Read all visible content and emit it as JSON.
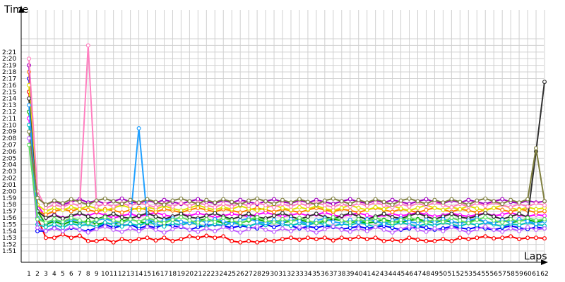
{
  "chart_data": {
    "type": "line",
    "ylabel": "Time",
    "xlabel": "Laps",
    "grid": true,
    "legend": "none",
    "xlim": [
      1,
      62
    ],
    "ylim_seconds": [
      110,
      142
    ],
    "y_ticks": [
      "1:51",
      "1:52",
      "1:53",
      "1:54",
      "1:55",
      "1:56",
      "1:57",
      "1:58",
      "1:59",
      "2:00",
      "2:01",
      "2:02",
      "2:03",
      "2:04",
      "2:05",
      "2:06",
      "2:07",
      "2:08",
      "2:09",
      "2:10",
      "2:11",
      "2:12",
      "2:13",
      "2:14",
      "2:15",
      "2:16",
      "2:17",
      "2:18",
      "2:19",
      "2:20",
      "2:21"
    ],
    "x_ticks": [
      "1",
      "2",
      "3",
      "4",
      "5",
      "6",
      "7",
      "8",
      "9",
      "10",
      "11",
      "12",
      "13",
      "14",
      "15",
      "16",
      "17",
      "18",
      "19",
      "20",
      "21",
      "22",
      "23",
      "24",
      "25",
      "26",
      "27",
      "28",
      "29",
      "30",
      "31",
      "32",
      "33",
      "34",
      "35",
      "36",
      "37",
      "38",
      "39",
      "40",
      "41",
      "42",
      "43",
      "44",
      "45",
      "46",
      "47",
      "48",
      "49",
      "50",
      "51",
      "52",
      "53",
      "54",
      "55",
      "56",
      "57",
      "58",
      "59",
      "60",
      "61",
      "62"
    ],
    "series": [
      {
        "color": "#ff0000",
        "values": [
          134,
          115,
          112,
          112,
          112.5,
          112,
          112.3,
          111.5,
          111.5,
          111.8,
          111.3,
          111.8,
          111.5,
          111.8,
          112,
          111.6,
          112,
          111.5,
          111.8,
          112.2,
          112,
          112.3,
          112,
          112.2,
          111.5,
          111.3,
          111.5,
          111.3,
          111.6,
          111.5,
          111.8,
          112,
          111.7,
          112,
          111.8,
          112,
          111.6,
          112,
          111.8,
          112.1,
          111.8,
          112,
          111.5,
          111.7,
          111.5,
          112,
          111.7,
          111.5,
          111.5,
          111.8,
          111.5,
          112,
          111.8,
          112,
          112.2,
          111.9,
          112,
          112.2,
          111.8,
          112,
          112,
          111.9
        ]
      },
      {
        "color": "#0000ff",
        "values": [
          136,
          113,
          113,
          113.5,
          113,
          113.5,
          113.2,
          113,
          113.5,
          114,
          113.5,
          113.8,
          114,
          113.4,
          113.8,
          113.5,
          114,
          113.8,
          113.6,
          113.2,
          113.6,
          113.8,
          114,
          113.8,
          113.5,
          113.8,
          113.6,
          113.4,
          114,
          113.6,
          114,
          113.8,
          113.4,
          113.7,
          113.5,
          113.8,
          113.6,
          113.3,
          113.5,
          113.7,
          113.4,
          113.6,
          113.8,
          113.5,
          113.2,
          113.4,
          113.7,
          113.5,
          113.2,
          113.4,
          113.7,
          113.5,
          113.3,
          113.6,
          113.4,
          113.2,
          113.5,
          113.8,
          113.5,
          113.3,
          113.6,
          113.4
        ]
      },
      {
        "color": "#00b000",
        "values": [
          131,
          116,
          114,
          114.5,
          114,
          114.5,
          114.2,
          114.6,
          114,
          114.3,
          114,
          114.5,
          114.8,
          114.4,
          114.2,
          114.6,
          114.3,
          114.7,
          114.4,
          114.2,
          114.6,
          114.8,
          114.5,
          114.3,
          114.5,
          114.2,
          114.6,
          114.8,
          114.4,
          114.6,
          114.3,
          114.5,
          114.7,
          114.4,
          114.2,
          114.5,
          114.8,
          114.6,
          114.3,
          114.5,
          114.2,
          114.4,
          114.7,
          114.5,
          114.3,
          114.6,
          114.8,
          114.5,
          114.3,
          114.6,
          114.4,
          114.2,
          114.5,
          114.7,
          114.4,
          114.2,
          114.6,
          114.3,
          114.5,
          114.7,
          114.4,
          114.6
        ]
      },
      {
        "color": "#ff00ff",
        "values": [
          130,
          117,
          115,
          115.5,
          115,
          115.2,
          115.6,
          115.3,
          115.8,
          115.4,
          115,
          115.3,
          115.6,
          115.2,
          115.5,
          115.8,
          115.4,
          115.2,
          115.6,
          115.3,
          115.7,
          115.4,
          115.1,
          115.3,
          115.6,
          115.4,
          115.2,
          115.5,
          115.8,
          115.5,
          115.2,
          115.4,
          115.7,
          115.3,
          115.5,
          115.8,
          115.4,
          115.2,
          115.5,
          115.7,
          115.4,
          115.1,
          115.4,
          115.6,
          115.3,
          115.5,
          115.8,
          115.5,
          115.2,
          115.4,
          115.7,
          115.4,
          115.2,
          115.5,
          115.7,
          115.3,
          115.5,
          115.8,
          115.4,
          115.2,
          115.5,
          115.3
        ]
      },
      {
        "color": "#00c0c0",
        "values": [
          129,
          114,
          113.6,
          114,
          113.5,
          114.2,
          113.8,
          114,
          113.6,
          114.3,
          114,
          113.7,
          114.1,
          113.8,
          114.4,
          114,
          113.7,
          114.2,
          113.9,
          114.3,
          114,
          113.6,
          114.1,
          113.8,
          114.3,
          114,
          113.7,
          114.2,
          113.9,
          114.4,
          114,
          113.8,
          114.2,
          113.9,
          114.3,
          114,
          113.7,
          114.1,
          113.9,
          114.3,
          114,
          113.6,
          114.2,
          113.9,
          114.3,
          114,
          113.7,
          114.1,
          113.8,
          114.3,
          114,
          113.7,
          114.2,
          113.9,
          114.3,
          114,
          113.7,
          114.1,
          113.9,
          114.3,
          114,
          113.8
        ]
      },
      {
        "color": "#ff8000",
        "values": [
          137,
          116,
          115.5,
          116,
          116.3,
          116,
          116.4,
          116.2,
          115.9,
          116.3,
          116.1,
          115.8,
          116.2,
          116.5,
          116.2,
          115.9,
          116.3,
          116.1,
          115.8,
          116.2,
          116.5,
          116.2,
          115.9,
          116.3,
          116.1,
          115.8,
          116.2,
          116.5,
          116.2,
          115.9,
          116.3,
          116.1,
          115.8,
          116.2,
          116.5,
          116.2,
          115.9,
          116.3,
          116.1,
          115.8,
          116.2,
          116.5,
          116.2,
          115.9,
          116.3,
          116.1,
          115.8,
          116.2,
          116.5,
          116.2,
          115.9,
          116.3,
          116.1,
          115.8,
          116.2,
          116.5,
          116.2,
          115.9,
          116.3,
          116.1,
          115.8,
          116
        ]
      },
      {
        "color": "#a000c0",
        "values": [
          138,
          118,
          117,
          117.5,
          117,
          117.4,
          117.8,
          117.3,
          117.6,
          117.1,
          117.5,
          117.9,
          117.4,
          117.2,
          117.6,
          117.3,
          117.7,
          117.4,
          117.1,
          117.5,
          117.8,
          117.4,
          117.2,
          117.6,
          117.3,
          117.7,
          117.4,
          117.1,
          117.5,
          117.8,
          117.4,
          117.2,
          117.6,
          117.3,
          117.7,
          117.4,
          117.1,
          117.5,
          117.8,
          117.4,
          117.2,
          117.6,
          117.3,
          117.7,
          117.4,
          117.1,
          117.5,
          117.8,
          117.4,
          117.2,
          117.6,
          117.3,
          117.7,
          117.4,
          117.1,
          117.5,
          117.8,
          117.4,
          117.2,
          117.6,
          117.3,
          117.5
        ]
      },
      {
        "color": "#e0e000",
        "values": [
          135,
          117,
          116,
          116.5,
          116.2,
          116.6,
          116.3,
          116.8,
          116.4,
          116.1,
          116.5,
          116.9,
          116.5,
          116.2,
          116.6,
          116.3,
          116.8,
          116.4,
          116.1,
          116.5,
          116.9,
          116.5,
          116.2,
          116.6,
          116.3,
          116.8,
          116.4,
          116.1,
          116.5,
          116.9,
          116.5,
          116.2,
          116.6,
          116.3,
          116.8,
          116.4,
          116.1,
          116.5,
          116.9,
          116.5,
          116.2,
          116.6,
          116.3,
          116.8,
          116.4,
          116.1,
          116.5,
          116.9,
          116.5,
          116.2,
          116.6,
          116.3,
          116.8,
          116.4,
          116.1,
          116.5,
          116.9,
          116.5,
          116.2,
          116.6,
          116.3,
          116.5
        ]
      },
      {
        "color": "#303030",
        "values": [
          133,
          116,
          115,
          115.4,
          114.9,
          115.3,
          115.7,
          115.2,
          114.8,
          115.2,
          115.6,
          115.1,
          114.9,
          115.3,
          115.7,
          115.2,
          114.8,
          115.2,
          115.6,
          115.1,
          114.9,
          115.3,
          115.7,
          115.2,
          114.8,
          115.2,
          115.6,
          115.1,
          114.9,
          115.3,
          115.7,
          115.2,
          114.8,
          115.2,
          115.6,
          115.1,
          114.9,
          115.3,
          115.7,
          115.2,
          114.8,
          115.2,
          115.6,
          115.1,
          114.9,
          115.3,
          115.7,
          115.2,
          114.8,
          115.2,
          115.6,
          115.1,
          114.9,
          115.3,
          115.7,
          115.2,
          114.8,
          115.2,
          115.6,
          115.1,
          125,
          135.5
        ]
      },
      {
        "color": "#20a0ff",
        "values": [
          132,
          115,
          114.2,
          114.7,
          114.3,
          114.8,
          114.5,
          114.1,
          114.6,
          114.9,
          114.4,
          114.2,
          114.7,
          128.5,
          114.8,
          114.3,
          114.6,
          114.9,
          114.4,
          114.2,
          114.7,
          114.3,
          114.8,
          114.5,
          114.1,
          114.6,
          114.9,
          114.4,
          114.2,
          114.7,
          114.3,
          114.8,
          114.5,
          114.1,
          114.6,
          114.9,
          114.4,
          114.2,
          114.7,
          114.3,
          114.8,
          114.5,
          114.1,
          114.6,
          114.9,
          114.4,
          114.2,
          114.7,
          114.3,
          114.8,
          114.5,
          114.1,
          114.6,
          114.9,
          114.4,
          114.2,
          114.7,
          114.3,
          114.8,
          114.5,
          114.1,
          114.5
        ]
      },
      {
        "color": "#ff80c0",
        "values": [
          139,
          119,
          116.5,
          117,
          116.6,
          117.2,
          116.8,
          141,
          116.7,
          117.1,
          116.7,
          117.2,
          116.8,
          117.3,
          116.9,
          116.6,
          117.1,
          116.7,
          117.2,
          116.8,
          117.3,
          116.9,
          116.6,
          117.1,
          116.7,
          117.2,
          116.8,
          117.3,
          116.9,
          116.6,
          117.1,
          116.7,
          117.2,
          116.8,
          117.3,
          116.9,
          116.6,
          117.1,
          116.7,
          117.2,
          116.8,
          117.3,
          116.9,
          116.6,
          117.1,
          116.7,
          117.2,
          116.8,
          117.3,
          116.9,
          116.6,
          117.1,
          116.7,
          117.2,
          116.8,
          117.3,
          116.9,
          116.6,
          117.1,
          116.7,
          117.2,
          116.9
        ]
      },
      {
        "color": "#808040",
        "values": [
          128,
          118,
          117,
          117.6,
          117.2,
          117.8,
          117.4,
          117,
          117.6,
          117.9,
          117.5,
          117.1,
          117.7,
          117.3,
          117.8,
          117.4,
          117,
          117.6,
          117.9,
          117.5,
          117.1,
          117.7,
          117.3,
          117.8,
          117.4,
          117,
          117.6,
          117.9,
          117.5,
          117.1,
          117.7,
          117.3,
          117.8,
          117.4,
          117,
          117.6,
          117.9,
          117.5,
          117.1,
          117.7,
          117.3,
          117.8,
          117.4,
          117,
          117.6,
          117.9,
          117.5,
          117.1,
          117.7,
          117.3,
          117.8,
          117.4,
          117,
          117.6,
          117.9,
          117.5,
          117.1,
          117.7,
          117.3,
          117.8,
          125.5,
          117.5
        ]
      },
      {
        "color": "#c060ff",
        "values": [
          127,
          113.5,
          113,
          113.4,
          113,
          113.6,
          113.2,
          112.8,
          113.3,
          113.7,
          113.2,
          112.9,
          113.4,
          113,
          113.6,
          113.2,
          112.8,
          113.3,
          113.7,
          113.2,
          112.9,
          113.4,
          113,
          113.6,
          113.2,
          112.8,
          113.3,
          113.7,
          113.2,
          112.9,
          113.4,
          113,
          113.6,
          113.2,
          112.8,
          113.3,
          113.7,
          113.2,
          112.9,
          113.4,
          113,
          113.6,
          113.2,
          112.8,
          113.3,
          113.7,
          113.2,
          112.9,
          113.4,
          113,
          113.6,
          113.2,
          112.8,
          113.3,
          113.7,
          113.2,
          112.9,
          113.4,
          113,
          113.6,
          113.2,
          113.4
        ]
      },
      {
        "color": "#60e060",
        "values": [
          126,
          114.8,
          114.3,
          114.8,
          114.4,
          115,
          114.6,
          114.2,
          114.7,
          115.1,
          114.6,
          114.3,
          114.8,
          114.4,
          115,
          114.6,
          114.2,
          114.7,
          115.1,
          114.6,
          114.3,
          114.8,
          114.4,
          115,
          114.6,
          114.2,
          114.7,
          115.1,
          114.6,
          114.3,
          114.8,
          114.4,
          115,
          114.6,
          114.2,
          114.7,
          115.1,
          114.6,
          114.3,
          114.8,
          114.4,
          115,
          114.6,
          114.2,
          114.7,
          115.1,
          114.6,
          114.3,
          114.8,
          114.4,
          115,
          114.6,
          114.2,
          114.7,
          115.1,
          114.6,
          114.3,
          114.8,
          114.4,
          115,
          114.6,
          114.8
        ]
      }
    ]
  }
}
